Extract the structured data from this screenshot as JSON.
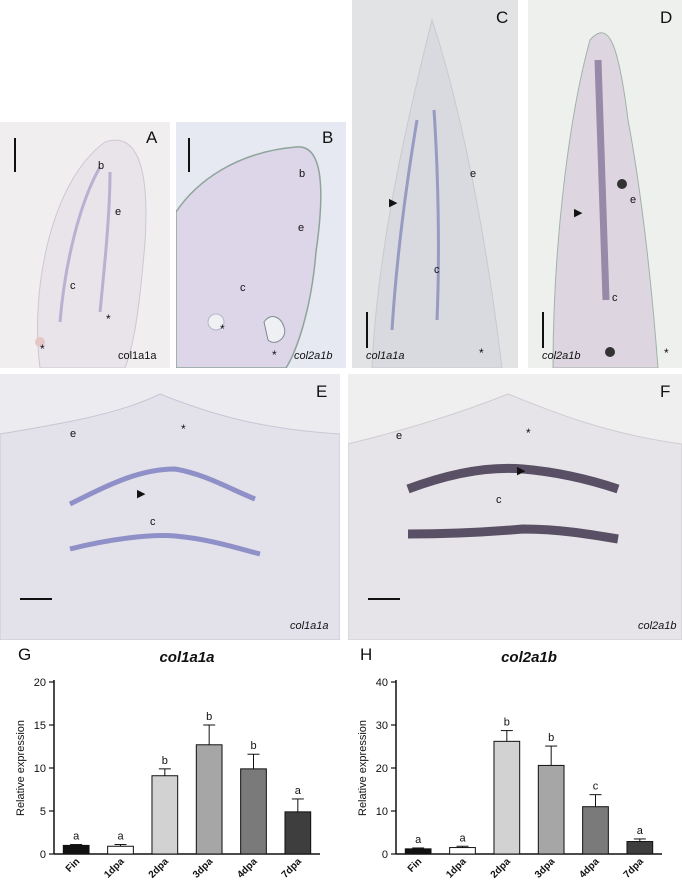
{
  "panels": {
    "A": {
      "letter": "A",
      "gene": "col1a1a",
      "labels": {
        "b": "b",
        "e": "e",
        "c": "c"
      },
      "asterisk": "*"
    },
    "B": {
      "letter": "B",
      "gene": "col2a1b",
      "labels": {
        "b": "b",
        "e": "e",
        "c": "c"
      },
      "asterisk": "*"
    },
    "C": {
      "letter": "C",
      "gene": "col1a1a",
      "labels": {
        "e": "e",
        "c": "c"
      },
      "asterisk": "*",
      "arrowhead": "▶"
    },
    "D": {
      "letter": "D",
      "gene": "col2a1b",
      "labels": {
        "e": "e",
        "c": "c"
      },
      "asterisk": "*",
      "arrowhead": "▶"
    },
    "E": {
      "letter": "E",
      "gene": "col1a1a",
      "labels": {
        "e": "e",
        "c": "c"
      },
      "asterisk": "*",
      "arrowhead": "▶"
    },
    "F": {
      "letter": "F",
      "gene": "col2a1b",
      "labels": {
        "e": "e",
        "c": "c"
      },
      "asterisk": "*",
      "arrowhead": "▶"
    }
  },
  "chart_data": [
    {
      "panel": "G",
      "type": "bar",
      "title": "col1a1a",
      "ylabel": "Relative expression",
      "xlabel": "",
      "categories": [
        "Fin",
        "1dpa",
        "2dpa",
        "3dpa",
        "4dpa",
        "7dpa"
      ],
      "values": [
        1.0,
        0.9,
        9.1,
        12.7,
        9.9,
        4.9
      ],
      "errors": [
        0.1,
        0.2,
        0.8,
        2.3,
        1.7,
        1.5
      ],
      "significance": [
        "a",
        "a",
        "b",
        "b",
        "b",
        "a"
      ],
      "colors": [
        "#111111",
        "#ffffff",
        "#d2d2d2",
        "#a6a6a6",
        "#7a7a7a",
        "#3e3e3e"
      ],
      "ylim": [
        0,
        20
      ],
      "yticks": [
        0,
        5,
        10,
        15,
        20
      ],
      "grid": false
    },
    {
      "panel": "H",
      "type": "bar",
      "title": "col2a1b",
      "ylabel": "Relative expression",
      "xlabel": "",
      "categories": [
        "Fin",
        "1dpa",
        "2dpa",
        "3dpa",
        "4dpa",
        "7dpa"
      ],
      "values": [
        1.2,
        1.5,
        26.2,
        20.6,
        11.0,
        2.9
      ],
      "errors": [
        0.2,
        0.3,
        2.5,
        4.5,
        2.8,
        0.6
      ],
      "significance": [
        "a",
        "a",
        "b",
        "b",
        "c",
        "a"
      ],
      "colors": [
        "#111111",
        "#ffffff",
        "#d2d2d2",
        "#a6a6a6",
        "#7a7a7a",
        "#3e3e3e"
      ],
      "ylim": [
        0,
        40
      ],
      "yticks": [
        0,
        10,
        20,
        30,
        40
      ],
      "grid": false
    }
  ]
}
